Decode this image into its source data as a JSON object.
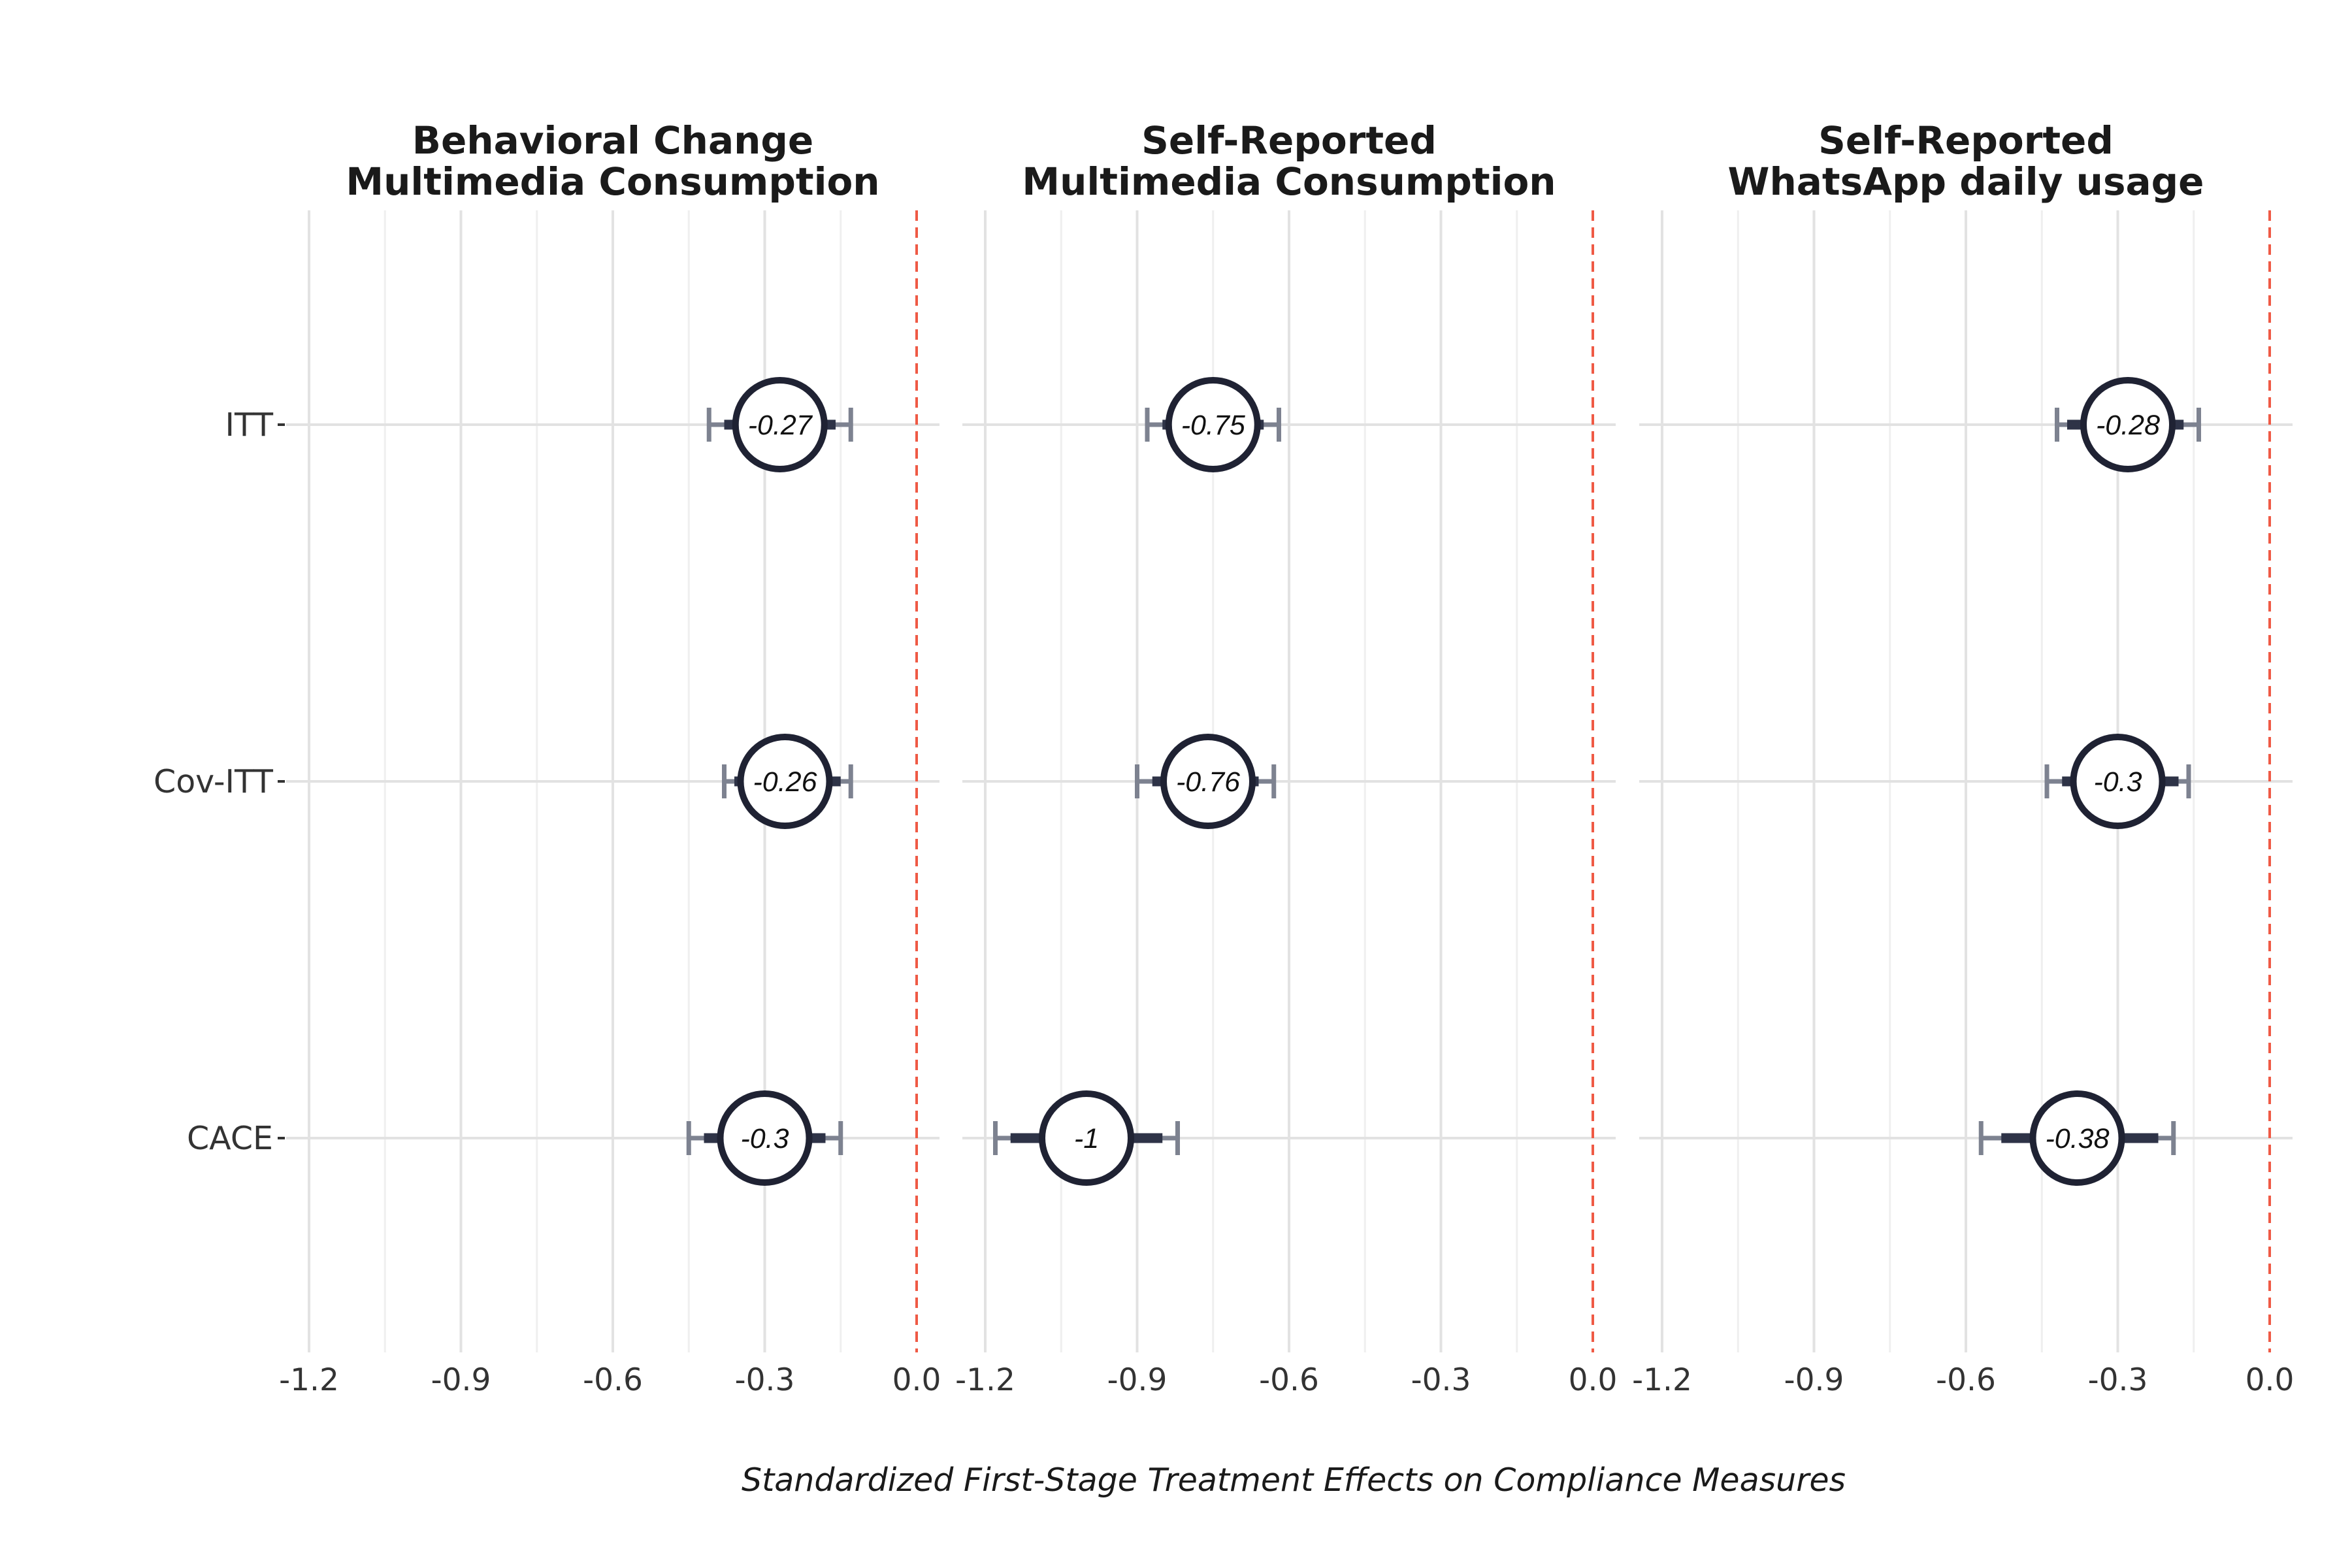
{
  "chart_data": {
    "type": "forest",
    "xlabel": "Standardized First-Stage Treatment Effects on Compliance Measures",
    "xlim": [
      -1.2,
      0.0
    ],
    "x_ticks": [
      -1.2,
      -0.9,
      -0.6,
      -0.3,
      0.0
    ],
    "x_tick_labels": [
      "-1.2",
      "-0.9",
      "-0.6",
      "-0.3",
      "0.0"
    ],
    "reference_line": 0.0,
    "categories": [
      "ITT",
      "Cov-ITT",
      "CACE"
    ],
    "colors": {
      "point": "#1f2233",
      "ci_inner": "#2e3347",
      "ci_outer": "#7d8290",
      "reference": "#ef5a45",
      "grid_major": "#e2e2e2",
      "grid_minor": "#efefef"
    },
    "panels": [
      {
        "title": [
          "Behavioral Change",
          "Multimedia Consumption"
        ],
        "estimates": [
          {
            "label": "ITT",
            "estimate": -0.27,
            "display": "-0.27",
            "ci95": [
              -0.41,
              -0.13
            ],
            "ci90": [
              -0.38,
              -0.16
            ]
          },
          {
            "label": "Cov-ITT",
            "estimate": -0.26,
            "display": "-0.26",
            "ci95": [
              -0.38,
              -0.13
            ],
            "ci90": [
              -0.36,
              -0.15
            ]
          },
          {
            "label": "CACE",
            "estimate": -0.3,
            "display": "-0.3",
            "ci95": [
              -0.45,
              -0.15
            ],
            "ci90": [
              -0.42,
              -0.18
            ]
          }
        ]
      },
      {
        "title": [
          "Self-Reported",
          "Multimedia Consumption"
        ],
        "estimates": [
          {
            "label": "ITT",
            "estimate": -0.75,
            "display": "-0.75",
            "ci95": [
              -0.88,
              -0.62
            ],
            "ci90": [
              -0.85,
              -0.65
            ]
          },
          {
            "label": "Cov-ITT",
            "estimate": -0.76,
            "display": "-0.76",
            "ci95": [
              -0.9,
              -0.63
            ],
            "ci90": [
              -0.87,
              -0.66
            ]
          },
          {
            "label": "CACE",
            "estimate": -1.0,
            "display": "-1",
            "ci95": [
              -1.18,
              -0.82
            ],
            "ci90": [
              -1.15,
              -0.85
            ]
          }
        ]
      },
      {
        "title": [
          "Self-Reported",
          "WhatsApp daily usage"
        ],
        "estimates": [
          {
            "label": "ITT",
            "estimate": -0.28,
            "display": "-0.28",
            "ci95": [
              -0.42,
              -0.14
            ],
            "ci90": [
              -0.4,
              -0.17
            ]
          },
          {
            "label": "Cov-ITT",
            "estimate": -0.3,
            "display": "-0.3",
            "ci95": [
              -0.44,
              -0.16
            ],
            "ci90": [
              -0.41,
              -0.18
            ]
          },
          {
            "label": "CACE",
            "estimate": -0.38,
            "display": "-0.38",
            "ci95": [
              -0.57,
              -0.19
            ],
            "ci90": [
              -0.53,
              -0.22
            ]
          }
        ]
      }
    ]
  }
}
